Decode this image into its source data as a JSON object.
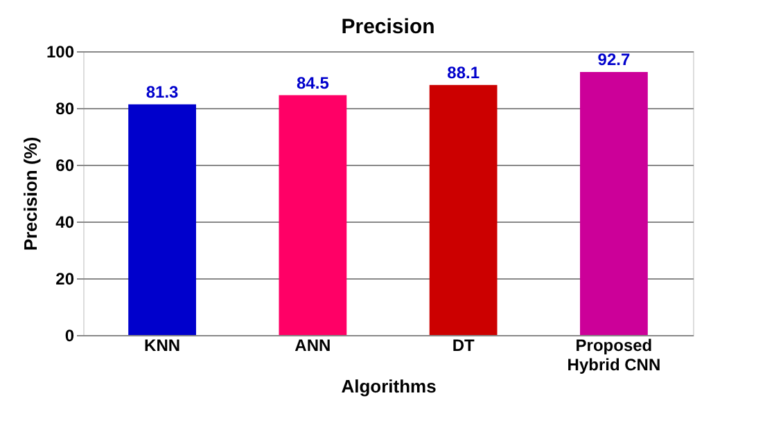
{
  "chart_data": {
    "type": "bar",
    "title": "Precision",
    "xlabel": "Algorithms",
    "ylabel": "Precision (%)",
    "categories": [
      "KNN",
      "ANN",
      "DT",
      "Proposed Hybrid CNN"
    ],
    "values": [
      81.3,
      84.5,
      88.1,
      92.7
    ],
    "colors": [
      "#0000cc",
      "#ff0066",
      "#cc0000",
      "#cc0099"
    ],
    "ylim": [
      0,
      100
    ],
    "yticks": [
      0,
      20,
      40,
      60,
      80,
      100
    ],
    "grid": "y",
    "data_labels": true
  }
}
